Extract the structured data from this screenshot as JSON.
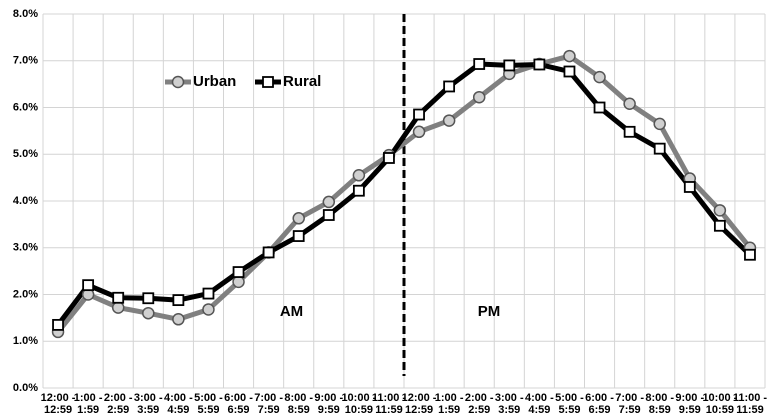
{
  "chart_data": {
    "type": "line",
    "categories": [
      [
        "12:00 -",
        "12:59"
      ],
      [
        "1:00 -",
        "1:59"
      ],
      [
        "2:00 -",
        "2:59"
      ],
      [
        "3:00 -",
        "3:59"
      ],
      [
        "4:00 -",
        "4:59"
      ],
      [
        "5:00 -",
        "5:59"
      ],
      [
        "6:00 -",
        "6:59"
      ],
      [
        "7:00 -",
        "7:59"
      ],
      [
        "8:00 -",
        "8:59"
      ],
      [
        "9:00 -",
        "9:59"
      ],
      [
        "10:00 -",
        "10:59"
      ],
      [
        "11:00 -",
        "11:59"
      ],
      [
        "12:00 -",
        "12:59"
      ],
      [
        "1:00 -",
        "1:59"
      ],
      [
        "2:00 -",
        "2:59"
      ],
      [
        "3:00 -",
        "3:59"
      ],
      [
        "4:00 -",
        "4:59"
      ],
      [
        "5:00 -",
        "5:59"
      ],
      [
        "6:00 -",
        "6:59"
      ],
      [
        "7:00 -",
        "7:59"
      ],
      [
        "8:00 -",
        "8:59"
      ],
      [
        "9:00 -",
        "9:59"
      ],
      [
        "10:00 -",
        "10:59"
      ],
      [
        "11:00 -",
        "11:59"
      ]
    ],
    "series": [
      {
        "name": "Urban",
        "color": "#808080",
        "values": [
          1.2,
          2.0,
          1.72,
          1.6,
          1.47,
          1.68,
          2.27,
          2.9,
          3.63,
          3.98,
          4.55,
          4.98,
          5.48,
          5.72,
          6.22,
          6.72,
          6.93,
          7.1,
          6.65,
          6.08,
          5.65,
          4.48,
          3.8,
          3.0
        ]
      },
      {
        "name": "Rural",
        "color": "#000000",
        "values": [
          1.35,
          2.2,
          1.93,
          1.92,
          1.88,
          2.02,
          2.48,
          2.9,
          3.25,
          3.7,
          4.22,
          4.92,
          5.85,
          6.45,
          6.93,
          6.9,
          6.92,
          6.77,
          6.0,
          5.48,
          5.12,
          4.3,
          3.47,
          2.85
        ]
      }
    ],
    "ylim": [
      0,
      8
    ],
    "yticks": [
      {
        "value": 0,
        "label": "0.0%"
      },
      {
        "value": 1,
        "label": "1.0%"
      },
      {
        "value": 2,
        "label": "2.0%"
      },
      {
        "value": 3,
        "label": "3.0%"
      },
      {
        "value": 4,
        "label": "4.0%"
      },
      {
        "value": 5,
        "label": "5.0%"
      },
      {
        "value": 6,
        "label": "6.0%"
      },
      {
        "value": 7,
        "label": "7.0%"
      },
      {
        "value": 8,
        "label": "8.0%"
      }
    ],
    "annotations": [
      "AM",
      "PM"
    ],
    "grid": true
  }
}
